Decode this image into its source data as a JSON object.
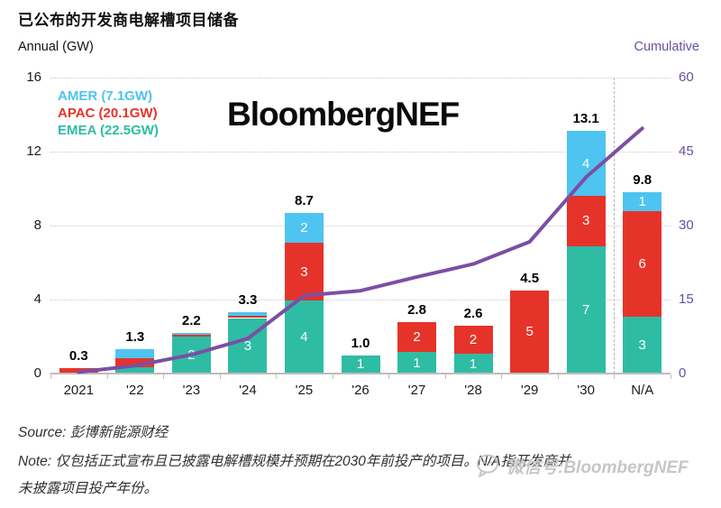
{
  "title": "已公布的开发商电解槽项目储备",
  "axes_headers": {
    "left": "Annual (GW)",
    "right": "Cumulative"
  },
  "watermark": "BloombergNEF",
  "legend": {
    "items": [
      {
        "label": "AMER (7.1GW)",
        "color": "#4EC4F0"
      },
      {
        "label": "APAC (20.1GW)",
        "color": "#E6332A"
      },
      {
        "label": "EMEA (22.5GW)",
        "color": "#2FBCA5"
      }
    ]
  },
  "footer": {
    "source": "Source: 彭博新能源财经",
    "note_line1": "Note: 仅包括正式宣布且已披露电解槽规模并预期在2030年前投产的项目。N/A指开发商并",
    "note_line2": "未披露项目投产年份。",
    "wechat_watermark": "微信号:BloombergNEF"
  },
  "chart_data": {
    "type": "bar",
    "subtype": "stacked-bars-with-cumulative-line",
    "categories": [
      "2021",
      "'22",
      "'23",
      "'24",
      "'25",
      "'26",
      "'27",
      "'28",
      "'29",
      "'30",
      "N/A"
    ],
    "totals": [
      "0.3",
      "1.3",
      "2.2",
      "3.3",
      "8.7",
      "1.0",
      "2.8",
      "2.6",
      "4.5",
      "13.1",
      "9.8"
    ],
    "series": [
      {
        "name": "EMEA",
        "color": "#2FBCA5",
        "values": [
          0,
          0.33,
          2.0,
          3.0,
          3.95,
          1.0,
          1.15,
          1.05,
          0,
          6.9,
          3.05
        ],
        "labels": [
          null,
          null,
          "2",
          "3",
          "4",
          "1",
          "1",
          "1",
          null,
          "7",
          "3"
        ]
      },
      {
        "name": "APAC",
        "color": "#E6332A",
        "values": [
          0.3,
          0.52,
          0.1,
          0.1,
          3.1,
          0,
          1.65,
          1.55,
          4.5,
          2.7,
          5.75
        ],
        "labels": [
          null,
          null,
          null,
          null,
          "3",
          null,
          "2",
          "2",
          "5",
          "3",
          "6"
        ]
      },
      {
        "name": "AMER",
        "color": "#4EC4F0",
        "values": [
          0,
          0.45,
          0.1,
          0.2,
          1.65,
          0,
          0,
          0,
          0,
          3.5,
          1.0
        ],
        "labels": [
          null,
          null,
          null,
          null,
          "2",
          null,
          null,
          null,
          null,
          "4",
          "1"
        ]
      }
    ],
    "line": {
      "name": "Cumulative",
      "color": "#7B4FA4",
      "values": [
        0.3,
        1.6,
        3.8,
        7.1,
        15.8,
        16.8,
        19.6,
        22.2,
        26.7,
        39.8,
        49.7
      ]
    },
    "left_axis": {
      "label": "Annual (GW)",
      "ticks": [
        0,
        4,
        8,
        12,
        16
      ],
      "max": 16
    },
    "right_axis": {
      "label": "Cumulative",
      "ticks": [
        0,
        15,
        30,
        45,
        60
      ],
      "max": 60
    },
    "separator_before_category": "N/A",
    "grid": "dotted-horizontal",
    "legend_position": "top-left-inside"
  }
}
